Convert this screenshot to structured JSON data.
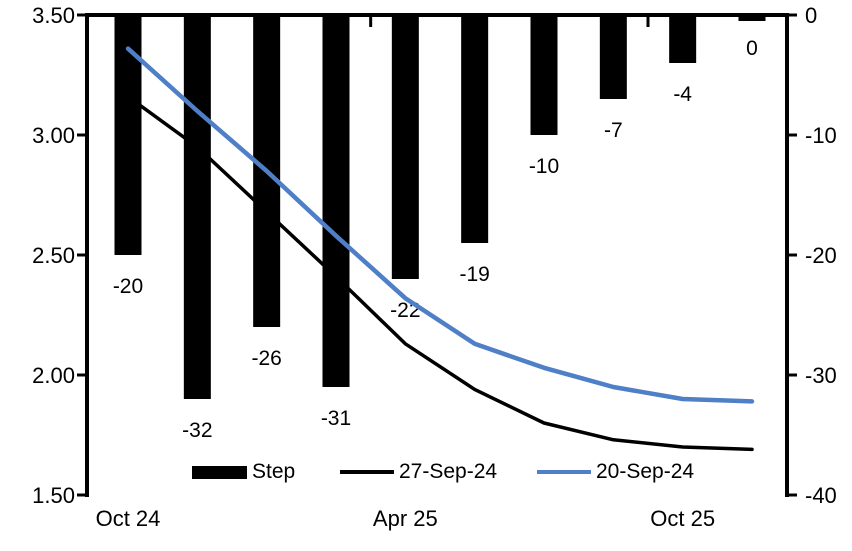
{
  "chart_data": {
    "type": "combo_bar_line",
    "title": "",
    "n_categories": 10,
    "x_axis": {
      "tick_labels": [
        "Oct 24",
        "Apr 25",
        "Oct 25"
      ],
      "tick_label_category_indices": [
        0,
        4,
        8
      ],
      "minor_tick_category_boundaries": [
        4,
        8
      ]
    },
    "left_axis": {
      "min": 1.5,
      "max": 3.5,
      "tick_labels": [
        "3.50",
        "3.00",
        "2.50",
        "2.00",
        "1.50"
      ],
      "tick_values": [
        3.5,
        3.0,
        2.5,
        2.0,
        1.5
      ]
    },
    "right_axis": {
      "min": -40,
      "max": 0,
      "tick_labels": [
        "0",
        "-10",
        "-20",
        "-30",
        "-40"
      ],
      "tick_values": [
        0,
        -10,
        -20,
        -30,
        -40
      ]
    },
    "series": [
      {
        "name": "Step",
        "type": "bar",
        "axis": "right",
        "color": "#000000",
        "values": [
          -20,
          -32,
          -26,
          -31,
          -22,
          -19,
          -10,
          -7,
          -4,
          0
        ],
        "data_labels": [
          "-20",
          "-32",
          "-26",
          "-31",
          "-22",
          "-19",
          "-10",
          "-7",
          "-4",
          "0"
        ]
      },
      {
        "name": "27-Sep-24",
        "type": "line",
        "axis": "left",
        "color": "#000000",
        "values": [
          3.16,
          2.95,
          2.68,
          2.41,
          2.13,
          1.94,
          1.8,
          1.73,
          1.7,
          1.69
        ]
      },
      {
        "name": "20-Sep-24",
        "type": "line",
        "axis": "left",
        "color": "#4E7FC7",
        "values": [
          3.36,
          3.1,
          2.85,
          2.58,
          2.32,
          2.13,
          2.03,
          1.95,
          1.9,
          1.89
        ]
      }
    ],
    "legend": {
      "position": "bottom",
      "items": [
        "Step",
        "27-Sep-24",
        "20-Sep-24"
      ]
    },
    "grid": "off",
    "background": "#ffffff"
  }
}
